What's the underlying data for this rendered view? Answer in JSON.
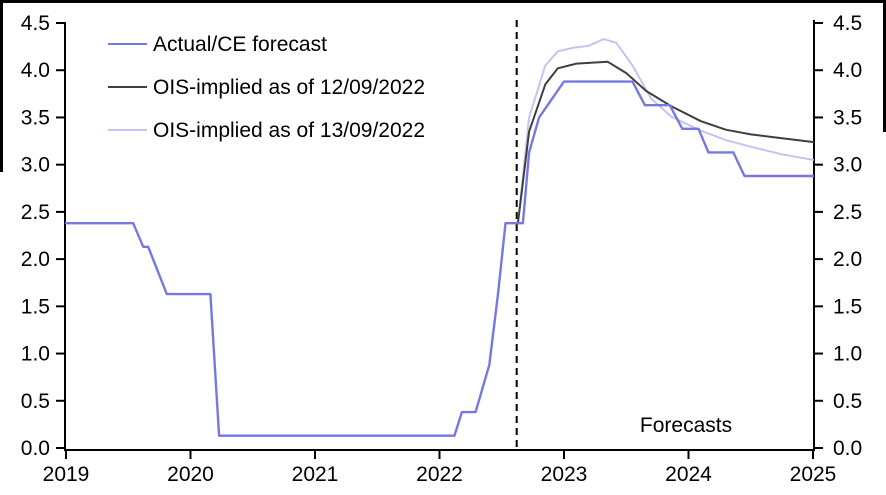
{
  "frame": {
    "border_color": "#000000",
    "background": "#ffffff"
  },
  "legend": {
    "items": [
      {
        "label": "Actual/CE forecast",
        "color": "#7678E2",
        "name": "actual-ce-forecast"
      },
      {
        "label": "OIS-implied as of 12/09/2022",
        "color": "#3F3F3F",
        "name": "ois-implied-12-09-2022"
      },
      {
        "label": "OIS-implied as of 13/09/2022",
        "color": "#C2C5F1",
        "name": "ois-implied-13-09-2022"
      }
    ]
  },
  "annotations": {
    "forecasts_label": "Forecasts"
  },
  "chart_data": {
    "type": "line",
    "title": "",
    "xlabel": "",
    "ylabel": "",
    "x_axis": {
      "range": [
        2019,
        2025
      ],
      "tick_values": [
        2019,
        2020,
        2021,
        2022,
        2023,
        2024,
        2025
      ],
      "tick_labels": [
        "2019",
        "2020",
        "2021",
        "2022",
        "2023",
        "2024",
        "2025"
      ]
    },
    "y_axis": {
      "range": [
        0.0,
        4.5
      ],
      "sides": "both",
      "tick_values": [
        0.0,
        0.5,
        1.0,
        1.5,
        2.0,
        2.5,
        3.0,
        3.5,
        4.0,
        4.5
      ],
      "tick_labels": [
        "0.0",
        "0.5",
        "1.0",
        "1.5",
        "2.0",
        "2.5",
        "3.0",
        "3.5",
        "4.0",
        "4.5"
      ]
    },
    "grid": false,
    "legend_position": "upper-left-inside",
    "forecast_divider": {
      "x": 2022.62,
      "style": "dashed",
      "color": "#000000"
    },
    "axis_color": "#000000",
    "series": [
      {
        "name": "Actual/CE forecast",
        "color": "#7678E2",
        "width": 2.4,
        "points": [
          [
            2019.0,
            2.38
          ],
          [
            2019.54,
            2.38
          ],
          [
            2019.62,
            2.13
          ],
          [
            2019.66,
            2.13
          ],
          [
            2019.81,
            1.63
          ],
          [
            2020.16,
            1.63
          ],
          [
            2020.23,
            0.13
          ],
          [
            2022.12,
            0.13
          ],
          [
            2022.18,
            0.38
          ],
          [
            2022.29,
            0.38
          ],
          [
            2022.4,
            0.88
          ],
          [
            2022.47,
            1.63
          ],
          [
            2022.53,
            2.38
          ],
          [
            2022.67,
            2.38
          ],
          [
            2022.72,
            3.13
          ],
          [
            2022.8,
            3.5
          ],
          [
            2023.0,
            3.88
          ],
          [
            2023.55,
            3.88
          ],
          [
            2023.65,
            3.63
          ],
          [
            2023.85,
            3.63
          ],
          [
            2023.95,
            3.38
          ],
          [
            2024.08,
            3.38
          ],
          [
            2024.16,
            3.13
          ],
          [
            2024.36,
            3.13
          ],
          [
            2024.45,
            2.88
          ],
          [
            2025.0,
            2.88
          ]
        ]
      },
      {
        "name": "OIS-implied as of 12/09/2022",
        "color": "#3F3F3F",
        "width": 2,
        "points": [
          [
            2022.63,
            2.38
          ],
          [
            2022.72,
            3.35
          ],
          [
            2022.85,
            3.85
          ],
          [
            2022.95,
            4.02
          ],
          [
            2023.1,
            4.07
          ],
          [
            2023.35,
            4.09
          ],
          [
            2023.5,
            3.97
          ],
          [
            2023.66,
            3.78
          ],
          [
            2023.86,
            3.62
          ],
          [
            2024.1,
            3.46
          ],
          [
            2024.3,
            3.37
          ],
          [
            2024.5,
            3.32
          ],
          [
            2024.75,
            3.28
          ],
          [
            2025.0,
            3.24
          ]
        ]
      },
      {
        "name": "OIS-implied as of 13/09/2022",
        "color": "#C2C5F1",
        "width": 2,
        "points": [
          [
            2022.63,
            2.38
          ],
          [
            2022.72,
            3.5
          ],
          [
            2022.85,
            4.05
          ],
          [
            2022.95,
            4.2
          ],
          [
            2023.08,
            4.24
          ],
          [
            2023.2,
            4.26
          ],
          [
            2023.32,
            4.33
          ],
          [
            2023.42,
            4.29
          ],
          [
            2023.55,
            4.05
          ],
          [
            2023.7,
            3.7
          ],
          [
            2023.86,
            3.51
          ],
          [
            2024.1,
            3.36
          ],
          [
            2024.3,
            3.26
          ],
          [
            2024.5,
            3.19
          ],
          [
            2024.75,
            3.11
          ],
          [
            2025.0,
            3.05
          ]
        ]
      }
    ]
  }
}
